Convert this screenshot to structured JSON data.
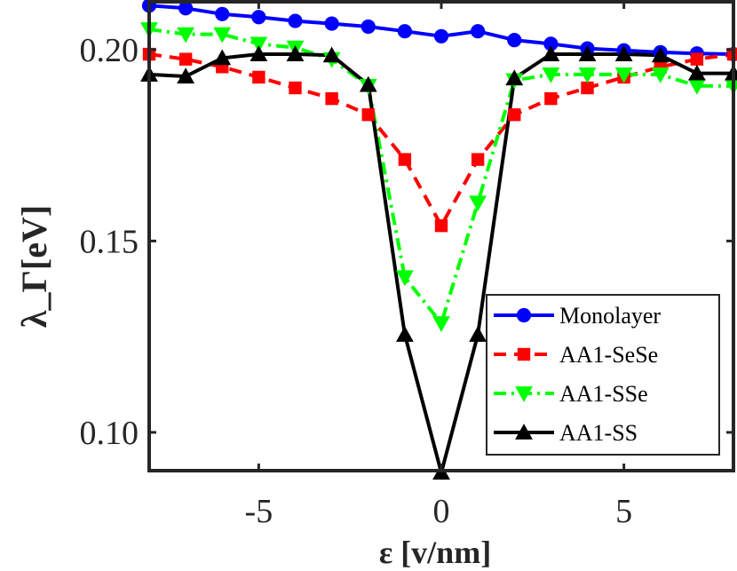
{
  "chart_data": {
    "type": "line",
    "xlabel": "ε [v/nm]",
    "ylabel": "λ_Γ[eV]",
    "xlim": [
      -8,
      8
    ],
    "ylim": [
      0.09,
      0.2125
    ],
    "xticks": [
      -5,
      0,
      5
    ],
    "xtick_labels": [
      "-5",
      "0",
      "5"
    ],
    "yticks": [
      0.1,
      0.15,
      0.2
    ],
    "ytick_labels": [
      "0.10",
      "0.15",
      "0.20"
    ],
    "grid": false,
    "legend_position": "bottom-right",
    "x": [
      -8,
      -7,
      -6,
      -5,
      -4,
      -3,
      -2,
      -1,
      0,
      1,
      2,
      3,
      4,
      5,
      6,
      7,
      8
    ],
    "series": [
      {
        "name": "Monolayer",
        "color": "#0000ff",
        "line_style": "solid",
        "marker": "circle",
        "values": [
          0.2115,
          0.2108,
          0.2093,
          0.2085,
          0.2075,
          0.2068,
          0.206,
          0.2048,
          0.2035,
          0.2048,
          0.2025,
          0.2015,
          0.2003,
          0.1998,
          0.1993,
          0.199,
          0.1988
        ]
      },
      {
        "name": "AA1-SeSe",
        "color": "#ff0000",
        "line_style": "dashed",
        "marker": "square",
        "values": [
          0.1988,
          0.1975,
          0.1955,
          0.1928,
          0.19,
          0.1872,
          0.183,
          0.1713,
          0.154,
          0.1713,
          0.183,
          0.1872,
          0.19,
          0.1928,
          0.1955,
          0.1975,
          0.1988
        ]
      },
      {
        "name": "AA1-SSe",
        "color": "#00ff00",
        "line_style": "dashdot",
        "marker": "triangle-down",
        "values": [
          0.2053,
          0.204,
          0.204,
          0.2015,
          0.2005,
          0.1975,
          0.1905,
          0.1405,
          0.1285,
          0.16,
          0.192,
          0.1935,
          0.1935,
          0.1935,
          0.1935,
          0.1905,
          0.1905
        ]
      },
      {
        "name": "AA1-SS",
        "color": "#000000",
        "line_style": "solid",
        "marker": "triangle-up",
        "values": [
          0.1935,
          0.193,
          0.1978,
          0.1988,
          0.1988,
          0.1985,
          0.1908,
          0.1255,
          0.0895,
          0.1255,
          0.1925,
          0.1988,
          0.1988,
          0.1988,
          0.1985,
          0.1938,
          0.1938
        ]
      }
    ]
  }
}
